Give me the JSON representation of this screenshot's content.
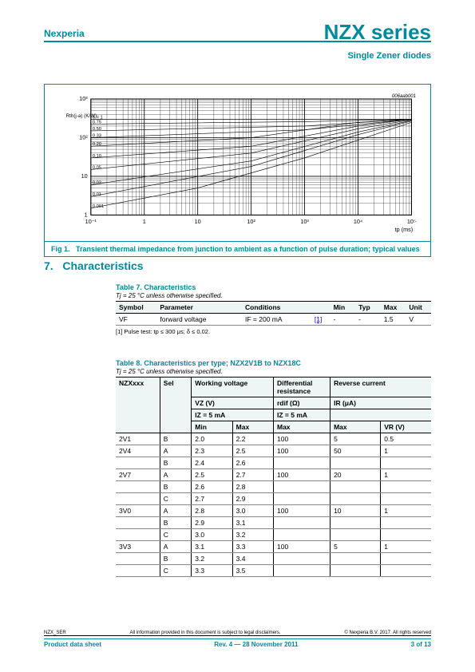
{
  "header": {
    "company": "Nexperia",
    "product": "NZX series",
    "subtitle": "Single Zener diodes"
  },
  "figure": {
    "id": "006aab001",
    "caption_prefix": "Fig 1.",
    "caption": "Transient thermal impedance from junction to ambient as a function of pulse duration; typical values",
    "ylabel": "Rth(j-a) (K/W)",
    "xlabel": "tp (ms)",
    "chart": {
      "type": "line",
      "xscale": "log",
      "yscale": "log",
      "xlim": [
        0.1,
        100000
      ],
      "ylim": [
        1,
        1000
      ],
      "xticks": [
        0.1,
        1,
        10,
        100,
        1000,
        10000,
        100000
      ],
      "xtick_labels": [
        "10⁻¹",
        "1",
        "10",
        "10²",
        "10³",
        "10⁴",
        "10⁵"
      ],
      "yticks": [
        1,
        10,
        100,
        1000
      ],
      "ytick_labels": [
        "1",
        "10",
        "10²",
        "10³"
      ],
      "series_labels": [
        "δ = 1",
        "0.75",
        "0.50",
        "0.33",
        "0.20",
        "0.10",
        "0.05",
        "0.02",
        "0.01",
        "0.001"
      ],
      "series": [
        [
          [
            0.1,
            300
          ],
          [
            100000,
            300
          ]
        ],
        [
          [
            0.1,
            225
          ],
          [
            1000,
            260
          ],
          [
            100000,
            300
          ]
        ],
        [
          [
            0.1,
            150
          ],
          [
            1000,
            200
          ],
          [
            100000,
            300
          ]
        ],
        [
          [
            0.1,
            100
          ],
          [
            1000,
            160
          ],
          [
            100000,
            300
          ]
        ],
        [
          [
            0.1,
            60
          ],
          [
            100,
            100
          ],
          [
            10000,
            250
          ],
          [
            100000,
            300
          ]
        ],
        [
          [
            0.1,
            30
          ],
          [
            100,
            60
          ],
          [
            10000,
            200
          ],
          [
            100000,
            300
          ]
        ],
        [
          [
            0.1,
            15
          ],
          [
            100,
            40
          ],
          [
            10000,
            170
          ],
          [
            100000,
            290
          ]
        ],
        [
          [
            0.1,
            6
          ],
          [
            100,
            25
          ],
          [
            10000,
            140
          ],
          [
            100000,
            280
          ]
        ],
        [
          [
            0.1,
            3
          ],
          [
            100,
            18
          ],
          [
            10000,
            120
          ],
          [
            100000,
            270
          ]
        ],
        [
          [
            0.1,
            1.5
          ],
          [
            10,
            5
          ],
          [
            1000,
            30
          ],
          [
            100000,
            250
          ]
        ]
      ],
      "line_color": "#000000",
      "line_width": 0.6,
      "grid_color": "#000000",
      "background_color": "#ffffff"
    }
  },
  "section": {
    "num": "7.",
    "title": "Characteristics"
  },
  "table7": {
    "title": "Table 7.    Characteristics",
    "subtitle": "Tj = 25 °C unless otherwise specified.",
    "cols": [
      "Symbol",
      "Parameter",
      "Conditions",
      "",
      "Min",
      "Typ",
      "Max",
      "Unit"
    ],
    "row": {
      "symbol": "VF",
      "param": "forward voltage",
      "cond": "IF = 200 mA",
      "ref": "[1]",
      "min": "-",
      "typ": "-",
      "max": "1.5",
      "unit": "V"
    },
    "note": "[1]   Pulse test: tp ≤ 300 μs; δ ≤ 0.02."
  },
  "table8": {
    "title": "Table 8.    Characteristics per type; NZX2V1B to NZX18C",
    "subtitle": "Tj = 25 °C unless otherwise specified.",
    "h1": {
      "c1": "NZXxxx",
      "c2": "Sel",
      "c3": "Working voltage",
      "c4": "Differential resistance",
      "c5": "Reverse current"
    },
    "h2": {
      "c3": "VZ (V)",
      "c4": "rdif (Ω)",
      "c5": "IR (μA)"
    },
    "h3": {
      "c3": "IZ = 5 mA",
      "c4": "IZ = 5 mA",
      "c5": ""
    },
    "h4": {
      "min": "Min",
      "max": "Max",
      "rmax": "Max",
      "imax": "Max",
      "vr": "VR (V)"
    },
    "rows": [
      {
        "n": "2V1",
        "s": "B",
        "min": "2.0",
        "max": "2.2",
        "r": "100",
        "i": "5",
        "v": "0.5"
      },
      {
        "n": "2V4",
        "s": "A",
        "min": "2.3",
        "max": "2.5",
        "r": "100",
        "i": "50",
        "v": "1"
      },
      {
        "n": "",
        "s": "B",
        "min": "2.4",
        "max": "2.6",
        "r": "",
        "i": "",
        "v": ""
      },
      {
        "n": "2V7",
        "s": "A",
        "min": "2.5",
        "max": "2.7",
        "r": "100",
        "i": "20",
        "v": "1"
      },
      {
        "n": "",
        "s": "B",
        "min": "2.6",
        "max": "2.8",
        "r": "",
        "i": "",
        "v": ""
      },
      {
        "n": "",
        "s": "C",
        "min": "2.7",
        "max": "2.9",
        "r": "",
        "i": "",
        "v": ""
      },
      {
        "n": "3V0",
        "s": "A",
        "min": "2.8",
        "max": "3.0",
        "r": "100",
        "i": "10",
        "v": "1"
      },
      {
        "n": "",
        "s": "B",
        "min": "2.9",
        "max": "3.1",
        "r": "",
        "i": "",
        "v": ""
      },
      {
        "n": "",
        "s": "C",
        "min": "3.0",
        "max": "3.2",
        "r": "",
        "i": "",
        "v": ""
      },
      {
        "n": "3V3",
        "s": "A",
        "min": "3.1",
        "max": "3.3",
        "r": "100",
        "i": "5",
        "v": "1"
      },
      {
        "n": "",
        "s": "B",
        "min": "3.2",
        "max": "3.4",
        "r": "",
        "i": "",
        "v": ""
      },
      {
        "n": "",
        "s": "C",
        "min": "3.3",
        "max": "3.5",
        "r": "",
        "i": "",
        "v": ""
      }
    ]
  },
  "footer": {
    "doc_id": "NZX_SER",
    "disclaimer": "All information provided in this document is subject to legal disclaimers.",
    "copyright": "© Nexperia B.V. 2017. All rights reserved",
    "left": "Product data sheet",
    "center": "Rev. 4 — 28 November 2011",
    "right": "3 of 13"
  }
}
